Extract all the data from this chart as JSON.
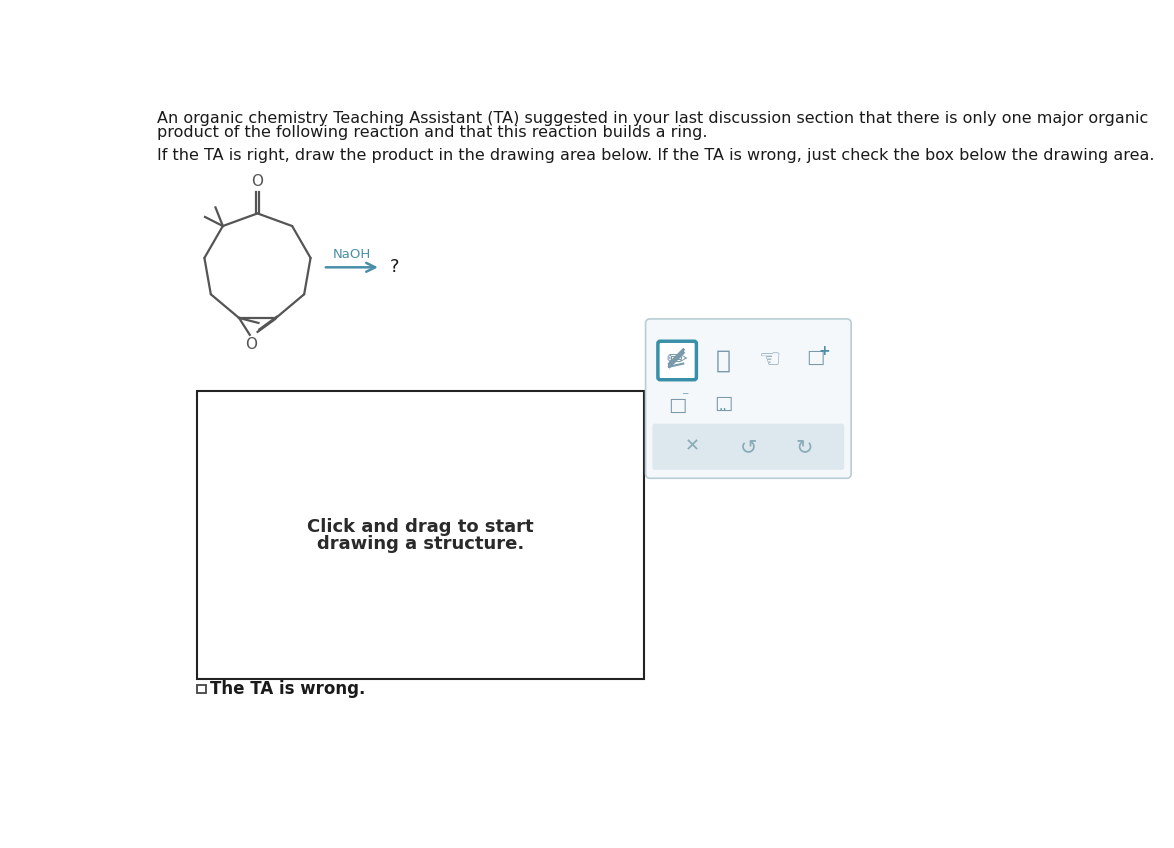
{
  "title_text1": "An organic chemistry Teaching Assistant (TA) suggested in your last discussion section that there is only one major organic",
  "title_text2": "product of the following reaction ​and​ that this reaction builds a ring.",
  "subtitle": "If the TA is right, draw the product in the drawing area below. If the TA is wrong, just check the box below the drawing area.",
  "naoh_label": "NaOH",
  "question_mark": "?",
  "draw_text1": "Click and drag to start",
  "draw_text2": "drawing a structure.",
  "ta_wrong": "The TA is wrong.",
  "bg_color": "#ffffff",
  "text_color": "#1a1a1a",
  "molecule_color": "#555555",
  "arrow_color": "#4a8fa8",
  "box_border_color": "#222222",
  "toolbar_border": "#4a8fa8",
  "toolbar_bg": "#f5f8fa",
  "grey_btn_bg": "#e0e8ec",
  "icon_color": "#7a9aaa",
  "selected_icon_border": "#3a8fa8"
}
